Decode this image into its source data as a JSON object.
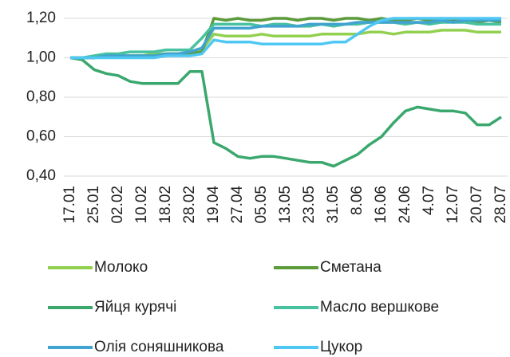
{
  "chart_data": {
    "type": "line",
    "categories": [
      "17.01",
      null,
      "25.01",
      null,
      "02.02",
      null,
      "10.02",
      null,
      "18.02",
      null,
      "28.02",
      null,
      "19.04",
      null,
      "27.04",
      null,
      "05.05",
      null,
      "13.05",
      null,
      "23.05",
      null,
      "31.05",
      null,
      "8.06",
      null,
      "16.06",
      null,
      "24.06",
      null,
      "4.07",
      null,
      "12.07",
      null,
      "20.07",
      null,
      "28.07"
    ],
    "series": [
      {
        "name": "Молоко",
        "color": "#92d050",
        "values": [
          1.0,
          1.0,
          1.0,
          1.01,
          1.01,
          1.01,
          1.01,
          1.02,
          1.02,
          1.02,
          1.03,
          1.04,
          1.12,
          1.11,
          1.11,
          1.11,
          1.12,
          1.11,
          1.11,
          1.11,
          1.11,
          1.12,
          1.12,
          1.12,
          1.12,
          1.13,
          1.13,
          1.12,
          1.13,
          1.13,
          1.13,
          1.14,
          1.14,
          1.14,
          1.13,
          1.13,
          1.13
        ]
      },
      {
        "name": "Сметана",
        "color": "#5b9b3a",
        "values": [
          1.0,
          1.0,
          1.0,
          1.01,
          1.01,
          1.01,
          1.01,
          1.01,
          1.02,
          1.02,
          1.02,
          1.03,
          1.2,
          1.19,
          1.2,
          1.19,
          1.19,
          1.2,
          1.2,
          1.19,
          1.2,
          1.2,
          1.19,
          1.2,
          1.2,
          1.19,
          1.2,
          1.19,
          1.19,
          1.2,
          1.19,
          1.2,
          1.19,
          1.19,
          1.18,
          1.19,
          1.18
        ]
      },
      {
        "name": "Яйця курячі",
        "color": "#3aa76d",
        "values": [
          1.0,
          0.99,
          0.94,
          0.92,
          0.91,
          0.88,
          0.87,
          0.87,
          0.87,
          0.87,
          0.93,
          0.93,
          0.57,
          0.54,
          0.5,
          0.49,
          0.5,
          0.5,
          0.49,
          0.48,
          0.47,
          0.47,
          0.45,
          0.48,
          0.51,
          0.56,
          0.6,
          0.67,
          0.73,
          0.75,
          0.74,
          0.73,
          0.73,
          0.72,
          0.66,
          0.66,
          0.7
        ]
      },
      {
        "name": "Масло вершкове",
        "color": "#47c1a0",
        "values": [
          1.0,
          1.0,
          1.01,
          1.02,
          1.02,
          1.03,
          1.03,
          1.03,
          1.04,
          1.04,
          1.04,
          1.1,
          1.17,
          1.17,
          1.17,
          1.17,
          1.16,
          1.17,
          1.17,
          1.16,
          1.16,
          1.17,
          1.16,
          1.17,
          1.17,
          1.18,
          1.18,
          1.18,
          1.17,
          1.18,
          1.17,
          1.18,
          1.18,
          1.18,
          1.17,
          1.17,
          1.17
        ]
      },
      {
        "name": "Олія соняшникова",
        "color": "#41a3cf",
        "values": [
          1.0,
          1.0,
          1.0,
          1.01,
          1.01,
          1.01,
          1.01,
          1.01,
          1.02,
          1.02,
          1.03,
          1.05,
          1.15,
          1.15,
          1.15,
          1.15,
          1.16,
          1.16,
          1.16,
          1.16,
          1.17,
          1.17,
          1.17,
          1.17,
          1.18,
          1.18,
          1.18,
          1.18,
          1.18,
          1.18,
          1.18,
          1.19,
          1.18,
          1.19,
          1.19,
          1.19,
          1.19
        ]
      },
      {
        "name": "Цукор",
        "color": "#4fc7f3",
        "values": [
          1.0,
          1.0,
          1.0,
          1.0,
          1.0,
          1.0,
          1.0,
          1.0,
          1.01,
          1.01,
          1.01,
          1.02,
          1.09,
          1.08,
          1.08,
          1.08,
          1.07,
          1.07,
          1.07,
          1.07,
          1.07,
          1.07,
          1.08,
          1.08,
          1.12,
          1.16,
          1.19,
          1.2,
          1.2,
          1.2,
          1.2,
          1.2,
          1.2,
          1.2,
          1.2,
          1.2,
          1.2
        ]
      }
    ],
    "ylim": [
      0.4,
      1.2
    ],
    "yticks": [
      {
        "value": 0.4,
        "label": "0,40"
      },
      {
        "value": 0.6,
        "label": "0,60"
      },
      {
        "value": 0.8,
        "label": "0,80"
      },
      {
        "value": 1.0,
        "label": "1,00"
      },
      {
        "value": 1.2,
        "label": "1,20"
      }
    ],
    "grid": true
  }
}
